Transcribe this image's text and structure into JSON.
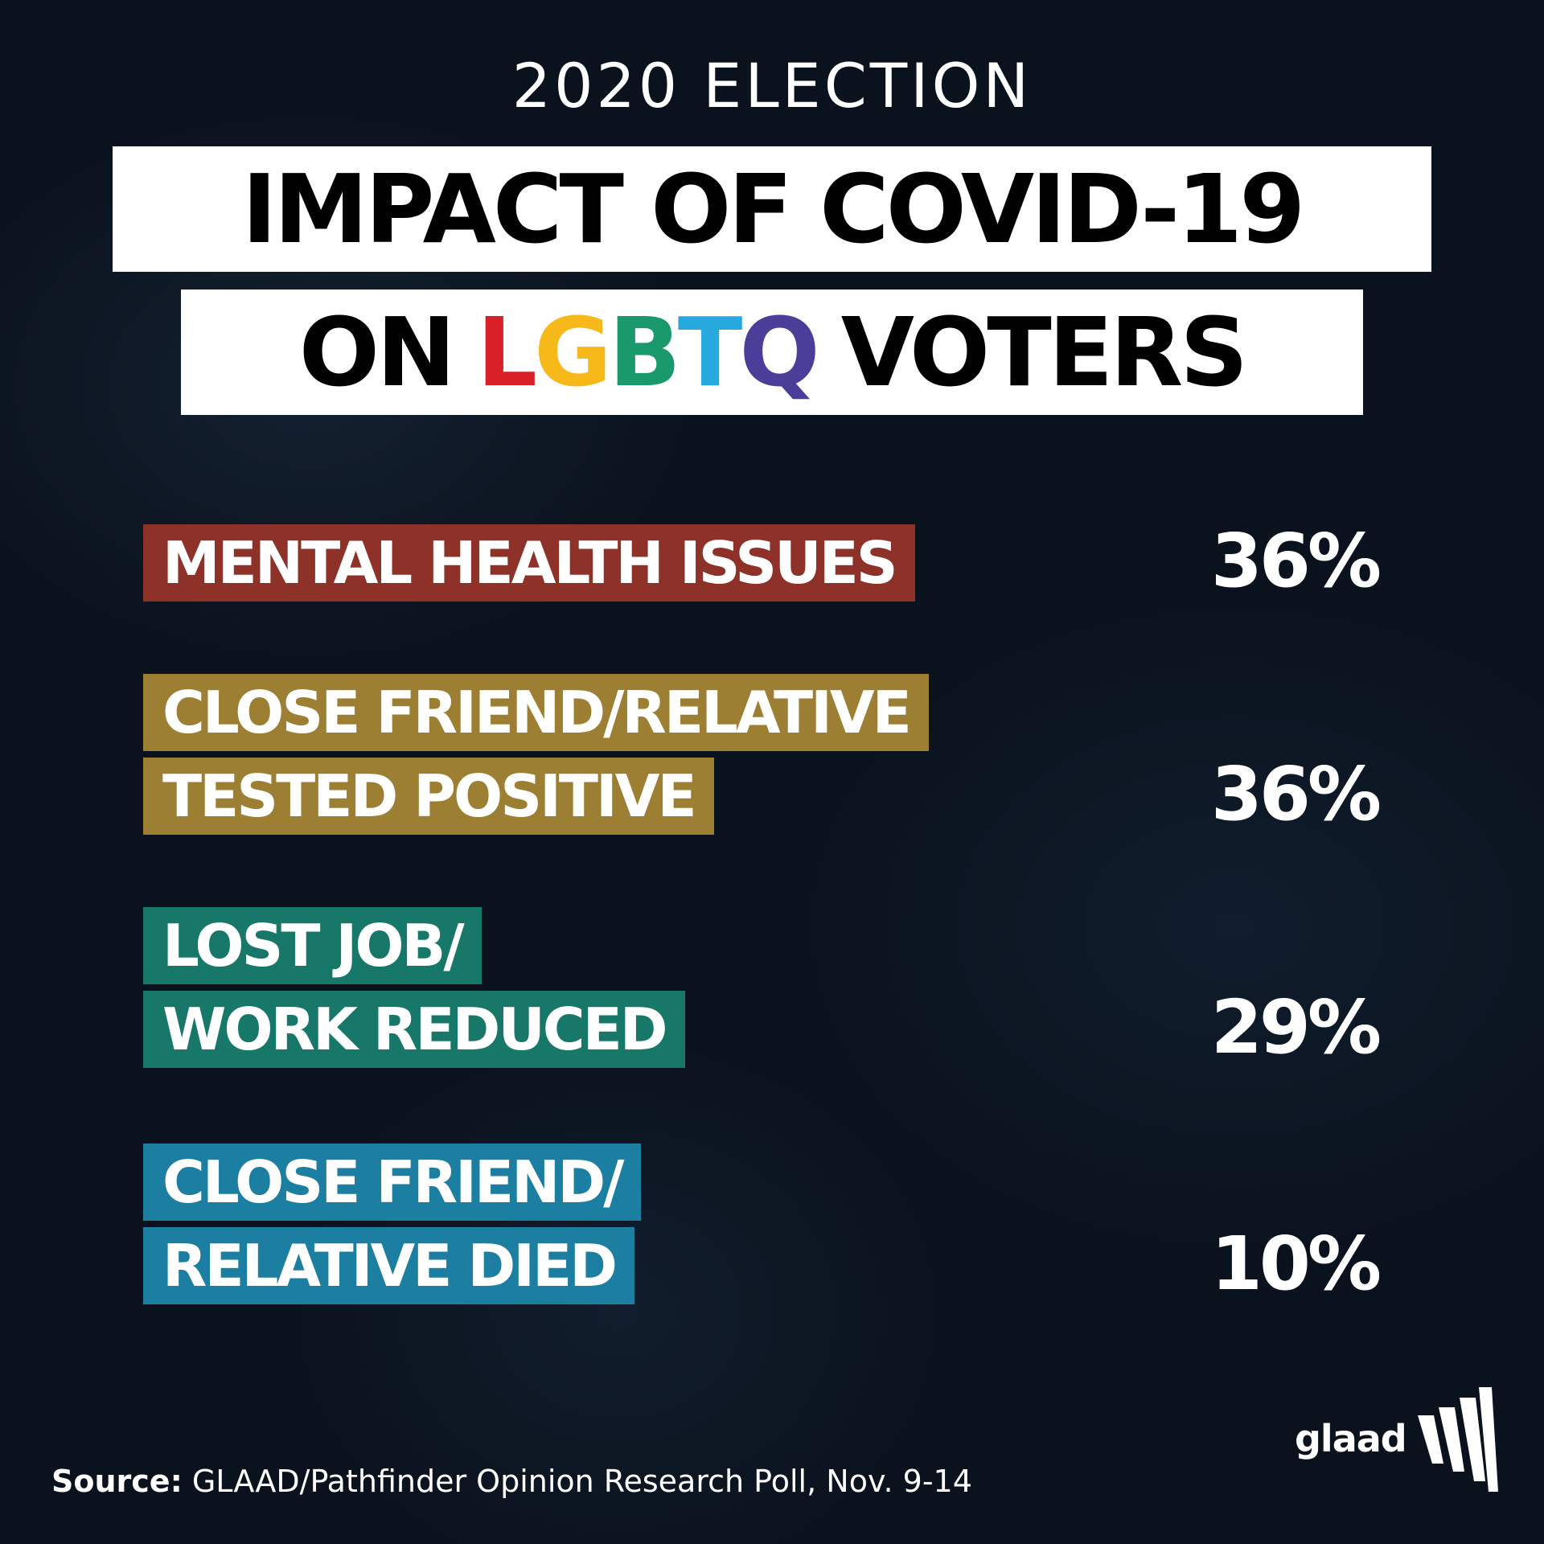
{
  "header": {
    "kicker": "2020 ELECTION",
    "title_line1": "IMPACT OF COVID-19",
    "title_line2_prefix": "ON",
    "title_line2_letters": [
      {
        "char": "L",
        "color": "#d72027"
      },
      {
        "char": "G",
        "color": "#f7b81a"
      },
      {
        "char": "B",
        "color": "#1a9a6c"
      },
      {
        "char": "T",
        "color": "#27a9df"
      },
      {
        "char": "Q",
        "color": "#4a3e98"
      }
    ],
    "title_line2_suffix": "VOTERS"
  },
  "chart_data": {
    "type": "table",
    "rows": [
      {
        "label_lines": [
          "MENTAL HEALTH ISSUES"
        ],
        "value": "36%",
        "color": "#8e3128"
      },
      {
        "label_lines": [
          "CLOSE FRIEND/RELATIVE",
          "TESTED POSITIVE"
        ],
        "value": "36%",
        "color": "#9c7f32"
      },
      {
        "label_lines": [
          "LOST JOB/",
          "WORK REDUCED"
        ],
        "value": "29%",
        "color": "#17786a"
      },
      {
        "label_lines": [
          "CLOSE FRIEND/",
          "RELATIVE DIED"
        ],
        "value": "10%",
        "color": "#1c7ea0"
      }
    ]
  },
  "footer": {
    "source_label": "Source:",
    "source_text": "GLAAD/Pathfinder Opinion Research Poll, Nov. 9-14",
    "logo_text": "glaad"
  }
}
